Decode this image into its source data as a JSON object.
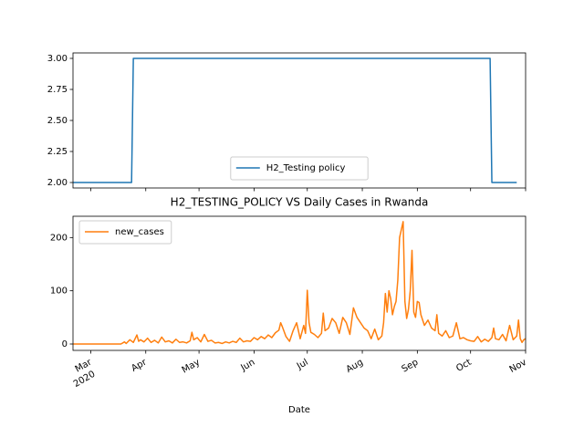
{
  "chart_data": [
    {
      "type": "line",
      "x": [
        -10,
        23,
        24,
        225,
        226,
        240
      ],
      "series": [
        {
          "name": "H2_Testing policy",
          "color": "#1f77b4",
          "values": [
            2,
            2,
            3,
            3,
            2,
            2
          ]
        }
      ],
      "xlim": [
        -10,
        245
      ],
      "ylim": [
        1.956,
        3.044
      ],
      "yticks": [
        {
          "value": 2,
          "label": "2.00"
        },
        {
          "value": 2.25,
          "label": "2.25"
        },
        {
          "value": 2.5,
          "label": "2.50"
        },
        {
          "value": 2.75,
          "label": "2.75"
        },
        {
          "value": 3,
          "label": "3.00"
        }
      ],
      "legend": "lower center"
    },
    {
      "type": "line",
      "title": "H2_TESTING_POLICY VS Daily Cases in Rwanda",
      "x_label": "Date",
      "x_year_label": "2020",
      "x": [
        -10,
        17,
        19,
        20,
        22,
        24,
        25,
        26,
        27,
        28,
        30,
        32,
        34,
        36,
        38,
        40,
        42,
        44,
        46,
        48,
        50,
        52,
        54,
        56,
        57,
        58,
        60,
        62,
        64,
        66,
        68,
        70,
        72,
        74,
        76,
        78,
        80,
        82,
        84,
        86,
        88,
        90,
        92,
        94,
        96,
        98,
        100,
        102,
        104,
        106,
        107,
        108,
        110,
        112,
        114,
        116,
        118,
        120,
        121,
        122,
        123,
        124,
        126,
        128,
        130,
        131,
        132,
        134,
        136,
        138,
        140,
        142,
        144,
        146,
        148,
        150,
        152,
        154,
        156,
        158,
        160,
        162,
        164,
        165,
        166,
        167,
        168,
        169,
        170,
        171,
        172,
        173,
        174,
        175,
        176,
        177,
        178,
        179,
        180,
        181,
        182,
        183,
        184,
        185,
        186,
        188,
        190,
        192,
        194,
        195,
        196,
        198,
        200,
        202,
        204,
        206,
        208,
        210,
        212,
        214,
        216,
        218,
        220,
        222,
        224,
        226,
        227,
        228,
        230,
        232,
        234,
        236,
        238,
        240,
        241,
        242,
        243,
        244,
        245
      ],
      "series": [
        {
          "name": "new_cases",
          "color": "#ff7f0e",
          "values": [
            0,
            0,
            4,
            1,
            8,
            3,
            10,
            17,
            5,
            8,
            4,
            11,
            3,
            7,
            2,
            13,
            4,
            6,
            2,
            9,
            3,
            4,
            2,
            6,
            22,
            8,
            12,
            4,
            18,
            5,
            7,
            2,
            3,
            1,
            4,
            2,
            5,
            3,
            11,
            4,
            6,
            5,
            12,
            8,
            14,
            10,
            17,
            12,
            21,
            26,
            40,
            32,
            14,
            5,
            25,
            40,
            10,
            35,
            20,
            101,
            40,
            22,
            18,
            12,
            20,
            58,
            25,
            30,
            48,
            40,
            20,
            50,
            40,
            18,
            68,
            50,
            40,
            30,
            25,
            10,
            28,
            8,
            15,
            40,
            95,
            60,
            100,
            85,
            55,
            70,
            80,
            120,
            200,
            215,
            230,
            80,
            48,
            65,
            100,
            176,
            60,
            50,
            80,
            78,
            55,
            35,
            45,
            30,
            25,
            55,
            20,
            15,
            25,
            12,
            15,
            40,
            10,
            12,
            8,
            6,
            5,
            14,
            4,
            9,
            5,
            12,
            30,
            10,
            8,
            18,
            6,
            35,
            8,
            15,
            45,
            10,
            3,
            8,
            10
          ]
        }
      ],
      "xlim": [
        -10,
        245
      ],
      "xticks": [
        {
          "value": 0,
          "label": "Mar"
        },
        {
          "value": 31,
          "label": "Apr"
        },
        {
          "value": 61,
          "label": "May"
        },
        {
          "value": 92,
          "label": "Jun"
        },
        {
          "value": 122,
          "label": "Jul"
        },
        {
          "value": 153,
          "label": "Aug"
        },
        {
          "value": 184,
          "label": "Sep"
        },
        {
          "value": 214,
          "label": "Oct"
        },
        {
          "value": 245,
          "label": "Nov"
        }
      ],
      "ylim": [
        -12,
        240
      ],
      "yticks": [
        0,
        100,
        200
      ],
      "legend": "upper left"
    }
  ]
}
